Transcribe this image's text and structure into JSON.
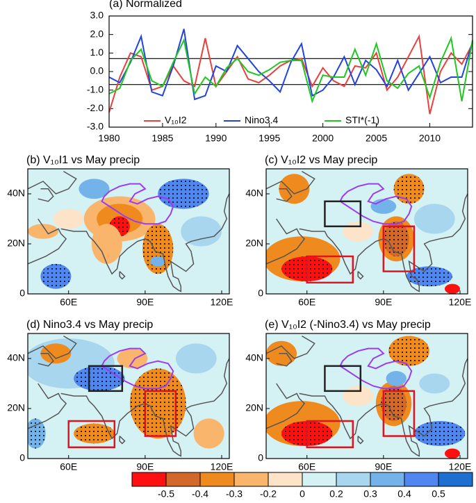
{
  "chart_data": [
    {
      "type": "line",
      "title": "(a) Normalized",
      "x": [
        1980,
        1981,
        1982,
        1983,
        1984,
        1985,
        1986,
        1987,
        1988,
        1989,
        1990,
        1991,
        1992,
        1993,
        1994,
        1995,
        1996,
        1997,
        1998,
        1999,
        2000,
        2001,
        2002,
        2003,
        2004,
        2005,
        2006,
        2007,
        2008,
        2009,
        2010,
        2011,
        2012,
        2013,
        2014
      ],
      "series": [
        {
          "name": "V₁₀I2",
          "color": "#e8413c",
          "values": [
            -2.2,
            -0.3,
            1.0,
            0.8,
            -1.0,
            -0.8,
            0.3,
            -0.5,
            -0.8,
            1.8,
            -0.8,
            0.0,
            0.8,
            -0.4,
            -0.6,
            -0.2,
            0.3,
            0.6,
            0.7,
            -0.8,
            0.2,
            -0.5,
            -0.8,
            0.3,
            0.2,
            1.0,
            -1.0,
            -0.3,
            0.8,
            1.9,
            -2.3,
            0.0,
            1.0,
            0.4,
            1.5
          ]
        },
        {
          "name": "Nino3.4",
          "color": "#2343e0",
          "values": [
            -0.3,
            -0.6,
            0.5,
            1.9,
            -1.1,
            -1.3,
            0.3,
            2.3,
            -1.5,
            -1.3,
            0.3,
            0.0,
            1.4,
            0.7,
            0.0,
            -0.5,
            -1.1,
            0.5,
            1.5,
            -1.3,
            -1.0,
            -0.3,
            0.8,
            -0.7,
            0.6,
            0.1,
            -0.8,
            0.6,
            -1.0,
            -0.1,
            0.8,
            -0.6,
            -0.3,
            -0.3,
            1.6
          ]
        },
        {
          "name": "STI*(-1)",
          "color": "#1ec81e",
          "values": [
            -1.2,
            -0.9,
            0.6,
            1.2,
            -0.5,
            -0.8,
            0.5,
            1.7,
            -1.2,
            -0.3,
            -0.8,
            0.2,
            0.7,
            0.0,
            -0.2,
            0.1,
            0.5,
            0.6,
            0.6,
            -1.6,
            -0.2,
            -0.3,
            -0.3,
            1.2,
            -0.2,
            1.5,
            -0.5,
            -0.9,
            -0.1,
            0.3,
            -1.4,
            0.5,
            1.8,
            -1.6,
            1.7
          ]
        }
      ],
      "reference_lines": [
        0.7,
        -0.7
      ],
      "xlim": [
        1980,
        2014
      ],
      "xticks": [
        1980,
        1985,
        1990,
        1995,
        2000,
        2005,
        2010
      ],
      "ylim": [
        -3,
        3
      ],
      "yticks": [
        {
          "value": 3,
          "label": "3.0"
        },
        {
          "value": 2,
          "label": "2.0"
        },
        {
          "value": 1,
          "label": "1.0"
        },
        {
          "value": 0,
          "label": "0.0"
        },
        {
          "value": -1,
          "label": "-1.0"
        },
        {
          "value": -2,
          "label": "-2.0"
        },
        {
          "value": -3,
          "label": "-3.0"
        }
      ]
    },
    {
      "type": "map",
      "title": "(b) V₁₀I1 vs May precip",
      "xlim": [
        44,
        123
      ],
      "ylim": [
        0,
        50
      ],
      "xticks": [
        {
          "value": 60,
          "label": "60E"
        },
        {
          "value": 90,
          "label": "90E"
        },
        {
          "value": 120,
          "label": "120E"
        }
      ],
      "yticks": [
        0,
        {
          "value": 20,
          "label": "20N"
        },
        {
          "value": 40,
          "label": "40N"
        }
      ],
      "regions": []
    },
    {
      "type": "map",
      "title": "(c) V₁₀I2 vs May precip",
      "xlim": [
        44,
        123
      ],
      "ylim": [
        0,
        50
      ],
      "xticks": [
        {
          "value": 60,
          "label": "60E"
        },
        {
          "value": 90,
          "label": "90E"
        },
        {
          "value": 120,
          "label": "120E"
        }
      ],
      "yticks": [
        0,
        {
          "value": 20,
          "label": "20N"
        },
        {
          "value": 40,
          "label": "40N"
        }
      ],
      "regions": [
        {
          "color": "#222222",
          "lon": [
            67,
            81
          ],
          "lat": [
            27,
            37
          ]
        },
        {
          "color": "#e0141e",
          "lon": [
            60,
            78
          ],
          "lat": [
            4.5,
            15
          ]
        },
        {
          "color": "#e0141e",
          "lon": [
            90,
            102
          ],
          "lat": [
            9,
            27
          ]
        }
      ]
    },
    {
      "type": "map",
      "title": "(d) Nino3.4 vs May precip",
      "xlim": [
        44,
        123
      ],
      "ylim": [
        0,
        50
      ],
      "xticks": [
        {
          "value": 60,
          "label": "60E"
        },
        {
          "value": 90,
          "label": "90E"
        },
        {
          "value": 120,
          "label": "120E"
        }
      ],
      "yticks": [
        0,
        {
          "value": 20,
          "label": "20N"
        },
        {
          "value": 40,
          "label": "40N"
        }
      ],
      "regions": [
        {
          "color": "#222222",
          "lon": [
            68,
            81
          ],
          "lat": [
            27,
            37
          ]
        },
        {
          "color": "#e0141e",
          "lon": [
            60,
            78
          ],
          "lat": [
            4.5,
            15
          ]
        },
        {
          "color": "#e0141e",
          "lon": [
            90,
            102
          ],
          "lat": [
            9,
            27
          ]
        }
      ]
    },
    {
      "type": "map",
      "title": "(e) V₁₀I2 (-Nino3.4) vs May precip",
      "xlim": [
        44,
        123
      ],
      "ylim": [
        0,
        50
      ],
      "xticks": [
        {
          "value": 60,
          "label": "60E"
        },
        {
          "value": 90,
          "label": "90E"
        },
        {
          "value": 120,
          "label": "120E"
        }
      ],
      "yticks": [
        0,
        {
          "value": 20,
          "label": "20N"
        },
        {
          "value": 40,
          "label": "40N"
        }
      ],
      "regions": [
        {
          "color": "#222222",
          "lon": [
            67,
            81
          ],
          "lat": [
            27,
            37
          ]
        },
        {
          "color": "#e0141e",
          "lon": [
            60,
            78
          ],
          "lat": [
            4.5,
            15
          ]
        },
        {
          "color": "#e0141e",
          "lon": [
            90,
            102
          ],
          "lat": [
            9,
            27
          ]
        }
      ]
    },
    {
      "type": "colorbar",
      "levels": [
        -0.5,
        -0.4,
        -0.3,
        -0.2,
        0,
        0.2,
        0.3,
        0.4,
        0.5
      ],
      "colors": [
        "#ff1010",
        "#d2692a",
        "#ef8a1e",
        "#f9b56c",
        "#fde4c8",
        "#d4f1f4",
        "#a8d6ee",
        "#74b3ea",
        "#4f86ef",
        "#1e6fd0"
      ]
    }
  ]
}
